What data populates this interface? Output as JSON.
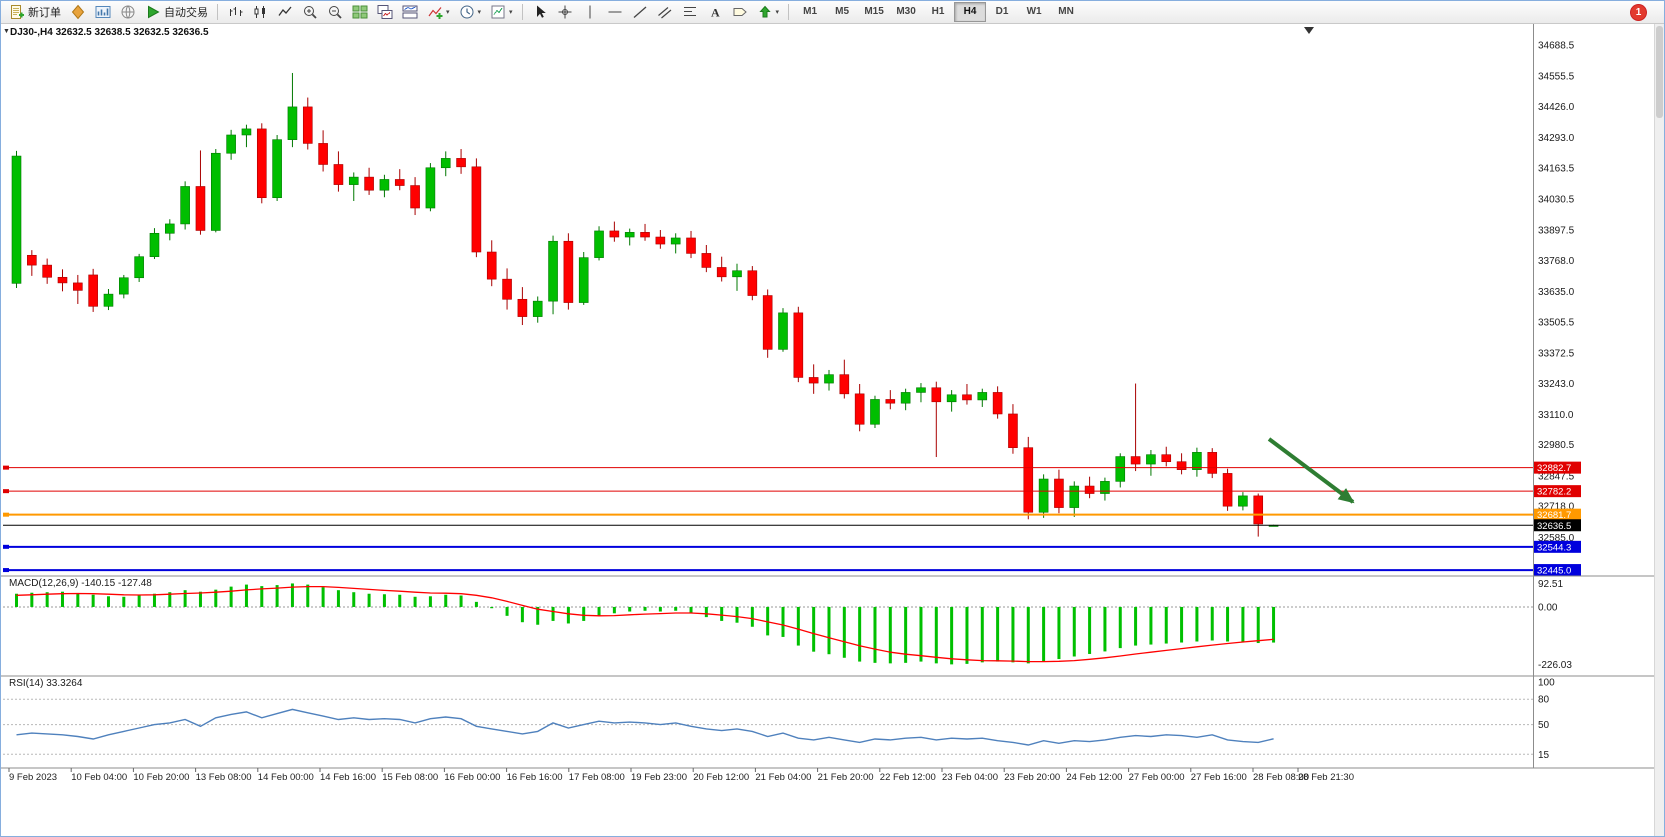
{
  "toolbar": {
    "new_order_label": "新订单",
    "auto_trading_label": "自动交易",
    "timeframes": [
      "M1",
      "M5",
      "M15",
      "M30",
      "H1",
      "H4",
      "D1",
      "W1",
      "MN"
    ],
    "active_timeframe": "H4",
    "notification_count": "1",
    "icons": [
      "new-order-icon",
      "mql-market-icon",
      "chart-profile-icon",
      "community-icon",
      "autotrade-play-icon",
      "bar-chart-icon",
      "candlestick-chart-icon",
      "line-chart-icon",
      "zoom-in-icon",
      "zoom-out-icon",
      "tile-windows-icon",
      "cascade-windows-icon",
      "arrange-windows-icon",
      "indicators-icon",
      "periods-clock-icon",
      "templates-icon",
      "cursor-icon",
      "crosshair-icon",
      "vertical-line-icon",
      "horizontal-line-icon",
      "trendline-icon",
      "channel-icon",
      "fibonacci-icon",
      "text-icon",
      "label-icon",
      "arrows-icon"
    ]
  },
  "chart": {
    "title": "DJ30-,H4 32632.5 32638.5 32632.5 32636.5",
    "symbol": "DJ30-",
    "period": "H4",
    "current_ohlc": {
      "open": "32632.5",
      "high": "32638.5",
      "low": "32632.5",
      "close": "32636.5"
    }
  },
  "chart_data": {
    "type": "candlestick",
    "symbol": "DJ30-",
    "timeframe": "H4",
    "up_color": "#00BE00",
    "down_color": "#FF0000",
    "y_axis_labels": [
      "34688.5",
      "34555.5",
      "34426.0",
      "34293.0",
      "34163.5",
      "34030.5",
      "33897.5",
      "33768.0",
      "33635.0",
      "33505.5",
      "33372.5",
      "33243.0",
      "33110.0",
      "32980.5",
      "32847.5",
      "32718.0",
      "32585.0"
    ],
    "time_labels": [
      "9 Feb 2023",
      "10 Feb 04:00",
      "10 Feb 20:00",
      "13 Feb 08:00",
      "14 Feb 00:00",
      "14 Feb 16:00",
      "15 Feb 08:00",
      "16 Feb 00:00",
      "16 Feb 16:00",
      "17 Feb 08:00",
      "19 Feb 23:00",
      "20 Feb 12:00",
      "21 Feb 04:00",
      "21 Feb 20:00",
      "22 Feb 12:00",
      "23 Feb 04:00",
      "23 Feb 20:00",
      "24 Feb 12:00",
      "27 Feb 00:00",
      "27 Feb 16:00",
      "28 Feb 08:00",
      "28 Feb 21:30"
    ],
    "hlines": [
      {
        "price": 32882.7,
        "label": "32882.7",
        "color": "#e00000",
        "width": 1,
        "handle": true
      },
      {
        "price": 32782.2,
        "label": "32782.2",
        "color": "#e00000",
        "width": 1,
        "handle": true
      },
      {
        "price": 32681.7,
        "label": "32681.7",
        "color": "#ff9900",
        "width": 2,
        "handle": true
      },
      {
        "price": 32636.5,
        "label": "32636.5",
        "color": "#000000",
        "width": 1,
        "handle": false
      },
      {
        "price": 32544.3,
        "label": "32544.3",
        "color": "#0000dd",
        "width": 2,
        "handle": true
      },
      {
        "price": 32445.0,
        "label": "32445.0",
        "color": "#0000dd",
        "width": 2,
        "handle": true
      }
    ],
    "bid_price": 32636.5,
    "candles": [
      [
        33670,
        34236,
        33650,
        34214
      ],
      [
        33790,
        33812,
        33702,
        33748
      ],
      [
        33748,
        33776,
        33668,
        33696
      ],
      [
        33696,
        33730,
        33636,
        33672
      ],
      [
        33672,
        33706,
        33582,
        33640
      ],
      [
        33706,
        33732,
        33548,
        33572
      ],
      [
        33572,
        33646,
        33556,
        33624
      ],
      [
        33624,
        33706,
        33606,
        33694
      ],
      [
        33694,
        33796,
        33676,
        33784
      ],
      [
        33784,
        33906,
        33774,
        33884
      ],
      [
        33884,
        33944,
        33854,
        33924
      ],
      [
        33924,
        34106,
        33900,
        34084
      ],
      [
        34084,
        34238,
        33878,
        33896
      ],
      [
        33896,
        34244,
        33888,
        34226
      ],
      [
        34226,
        34326,
        34198,
        34304
      ],
      [
        34304,
        34348,
        34252,
        34330
      ],
      [
        34330,
        34354,
        34012,
        34036
      ],
      [
        34036,
        34304,
        34022,
        34284
      ],
      [
        34284,
        34569,
        34252,
        34424
      ],
      [
        34424,
        34464,
        34242,
        34268
      ],
      [
        34268,
        34324,
        34148,
        34178
      ],
      [
        34178,
        34234,
        34062,
        34092
      ],
      [
        34092,
        34144,
        34022,
        34124
      ],
      [
        34124,
        34164,
        34048,
        34068
      ],
      [
        34068,
        34134,
        34038,
        34114
      ],
      [
        34114,
        34158,
        34068,
        34088
      ],
      [
        34088,
        34124,
        33962,
        33992
      ],
      [
        33992,
        34184,
        33978,
        34164
      ],
      [
        34164,
        34234,
        34128,
        34204
      ],
      [
        34204,
        34244,
        34138,
        34168
      ],
      [
        34168,
        34204,
        33782,
        33804
      ],
      [
        33804,
        33854,
        33658,
        33688
      ],
      [
        33688,
        33734,
        33558,
        33602
      ],
      [
        33602,
        33654,
        33492,
        33528
      ],
      [
        33528,
        33614,
        33502,
        33594
      ],
      [
        33594,
        33874,
        33538,
        33850
      ],
      [
        33850,
        33884,
        33558,
        33588
      ],
      [
        33588,
        33804,
        33578,
        33780
      ],
      [
        33780,
        33914,
        33768,
        33894
      ],
      [
        33894,
        33934,
        33848,
        33868
      ],
      [
        33868,
        33904,
        33832,
        33888
      ],
      [
        33888,
        33924,
        33852,
        33868
      ],
      [
        33868,
        33898,
        33818,
        33838
      ],
      [
        33838,
        33884,
        33798,
        33864
      ],
      [
        33864,
        33894,
        33778,
        33798
      ],
      [
        33798,
        33834,
        33718,
        33738
      ],
      [
        33738,
        33784,
        33678,
        33698
      ],
      [
        33698,
        33754,
        33638,
        33724
      ],
      [
        33724,
        33744,
        33598,
        33618
      ],
      [
        33618,
        33644,
        33352,
        33388
      ],
      [
        33388,
        33564,
        33378,
        33544
      ],
      [
        33544,
        33570,
        33248,
        33268
      ],
      [
        33268,
        33324,
        33198,
        33244
      ],
      [
        33244,
        33300,
        33212,
        33280
      ],
      [
        33280,
        33344,
        33178,
        33198
      ],
      [
        33198,
        33240,
        33038,
        33068
      ],
      [
        33068,
        33190,
        33052,
        33174
      ],
      [
        33174,
        33214,
        33132,
        33158
      ],
      [
        33158,
        33220,
        33128,
        33204
      ],
      [
        33204,
        33244,
        33162,
        33224
      ],
      [
        33224,
        33250,
        32928,
        33164
      ],
      [
        33164,
        33214,
        33122,
        33194
      ],
      [
        33194,
        33240,
        33152,
        33172
      ],
      [
        33172,
        33220,
        33142,
        33204
      ],
      [
        33204,
        33230,
        33092,
        33112
      ],
      [
        33112,
        33154,
        32942,
        32968
      ],
      [
        32968,
        33014,
        32662,
        32692
      ],
      [
        32692,
        32854,
        32668,
        32834
      ],
      [
        32834,
        32874,
        32688,
        32712
      ],
      [
        32712,
        32824,
        32672,
        32804
      ],
      [
        32804,
        32844,
        32752,
        32772
      ],
      [
        32772,
        32840,
        32742,
        32824
      ],
      [
        32824,
        32944,
        32798,
        32930
      ],
      [
        32930,
        33242,
        32868,
        32898
      ],
      [
        32898,
        32958,
        32848,
        32938
      ],
      [
        32938,
        32972,
        32888,
        32908
      ],
      [
        32908,
        32944,
        32854,
        32874
      ],
      [
        32874,
        32968,
        32844,
        32948
      ],
      [
        32948,
        32966,
        32838,
        32858
      ],
      [
        32858,
        32878,
        32698,
        32718
      ],
      [
        32718,
        32778,
        32700,
        32762
      ],
      [
        32762,
        32772,
        32588,
        32642
      ],
      [
        32632.5,
        32638.5,
        32632.5,
        32636.5
      ]
    ]
  },
  "macd": {
    "label": "MACD(12,26,9)",
    "main_value": "-140.15",
    "signal_value": "-127.48",
    "axis_labels": [
      "92.51",
      "0.00",
      "-226.03"
    ],
    "histogram_color": "#00C000",
    "signal_color": "#FF0000",
    "histogram": [
      52,
      56,
      58,
      60,
      55,
      48,
      42,
      40,
      45,
      52,
      58,
      66,
      60,
      68,
      80,
      88,
      82,
      86,
      92.51,
      88,
      78,
      66,
      58,
      52,
      50,
      48,
      40,
      42,
      48,
      45,
      20,
      -5,
      -35,
      -60,
      -70,
      -55,
      -65,
      -55,
      -35,
      -25,
      -18,
      -15,
      -18,
      -15,
      -25,
      -40,
      -55,
      -62,
      -78,
      -112,
      -118,
      -152,
      -176,
      -186,
      -200,
      -215,
      -220,
      -222,
      -220,
      -215,
      -222,
      -226.03,
      -224,
      -218,
      -215,
      -218,
      -222,
      -215,
      -205,
      -195,
      -185,
      -175,
      -162,
      -152,
      -148,
      -144,
      -140,
      -136,
      -132,
      -136,
      -140,
      -142,
      -140.15
    ],
    "signal": [
      46,
      48,
      50,
      52,
      53,
      52,
      50,
      48,
      47,
      48,
      50,
      53,
      55,
      58,
      62,
      67,
      71,
      74,
      78,
      80,
      80,
      77,
      73,
      69,
      65,
      62,
      58,
      55,
      54,
      52,
      46,
      36,
      22,
      6,
      -9,
      -18,
      -27,
      -33,
      -35,
      -34,
      -31,
      -28,
      -26,
      -24,
      -24,
      -27,
      -32,
      -38,
      -46,
      -59,
      -71,
      -87,
      -105,
      -121,
      -137,
      -153,
      -166,
      -178,
      -186,
      -192,
      -198,
      -204,
      -208,
      -211,
      -212,
      -213,
      -215,
      -215,
      -214,
      -211,
      -206,
      -200,
      -193,
      -185,
      -178,
      -171,
      -164,
      -157,
      -150,
      -144,
      -138,
      -133,
      -127.48
    ]
  },
  "rsi": {
    "label": "RSI(14)",
    "value": "33.3264",
    "axis_labels": [
      "100",
      "80",
      "50",
      "15"
    ],
    "levels": [
      80,
      50,
      15
    ],
    "line_color": "#4F81BD",
    "values": [
      38,
      40,
      39,
      38,
      36,
      33,
      38,
      42,
      46,
      50,
      52,
      56,
      48,
      58,
      62,
      65,
      58,
      63,
      68,
      64,
      60,
      56,
      58,
      56,
      57,
      56,
      52,
      57,
      59,
      57,
      48,
      45,
      42,
      39,
      42,
      52,
      46,
      50,
      54,
      52,
      53,
      52,
      50,
      52,
      48,
      45,
      43,
      45,
      42,
      36,
      40,
      34,
      32,
      35,
      32,
      29,
      33,
      32,
      34,
      35,
      32,
      34,
      33,
      34,
      31,
      29,
      26,
      31,
      28,
      31,
      30,
      32,
      35,
      37,
      36,
      38,
      37,
      35,
      38,
      32,
      30,
      29,
      33.3264
    ]
  },
  "annotation": {
    "arrow_color": "#2E7D32"
  }
}
